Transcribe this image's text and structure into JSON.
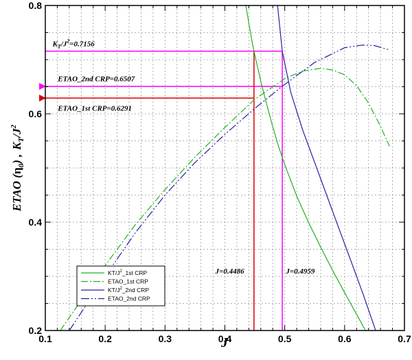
{
  "chart_data": {
    "type": "line",
    "xlabel": "J",
    "ylabel_main": "ETAO (",
    "ylabel_eta": "η",
    "ylabel_eta_sub": "0",
    "ylabel_sep": ") ,",
    "ylabel_k": "K",
    "ylabel_k_sub": "T",
    "ylabel_j": "/J",
    "ylabel_j_sup": "2",
    "xlim": [
      0.1,
      0.7
    ],
    "ylim": [
      0.2,
      0.8
    ],
    "xticks": [
      "0.1",
      "0.2",
      "0.3",
      "0.4",
      "0.5",
      "0.6",
      "0.7"
    ],
    "yticks": [
      {
        "value": 0.2,
        "label": "0.2"
      },
      {
        "value": 0.4,
        "label": "0.4"
      },
      {
        "value": 0.6,
        "label": "0.6"
      },
      {
        "value": 0.8,
        "label": "0.8"
      }
    ],
    "grid": true,
    "legend_position": "bottom-left",
    "series": [
      {
        "name": "KT/J²_1st CRP",
        "legend_base": "KT/J",
        "legend_sup": "2",
        "legend_rest": "_1st CRP",
        "color": "#22b022",
        "dash": "none",
        "x": [
          0.435,
          0.445,
          0.4486,
          0.46,
          0.47,
          0.48,
          0.49,
          0.5,
          0.52,
          0.54,
          0.56,
          0.58,
          0.6,
          0.62,
          0.635
        ],
        "y": [
          0.8,
          0.736,
          0.7156,
          0.66,
          0.617,
          0.576,
          0.539,
          0.506,
          0.448,
          0.399,
          0.354,
          0.311,
          0.27,
          0.23,
          0.2
        ]
      },
      {
        "name": "ETAO_1st CRP",
        "legend_base": "ETAO_1st CRP",
        "legend_sup": "",
        "legend_rest": "",
        "color": "#22b022",
        "dash": "10,3,2,3",
        "x": [
          0.125,
          0.15,
          0.2,
          0.25,
          0.3,
          0.35,
          0.4,
          0.45,
          0.5,
          0.53,
          0.56,
          0.58,
          0.6,
          0.62,
          0.64,
          0.66,
          0.675
        ],
        "y": [
          0.2,
          0.24,
          0.32,
          0.395,
          0.46,
          0.52,
          0.575,
          0.627,
          0.665,
          0.679,
          0.684,
          0.681,
          0.672,
          0.652,
          0.62,
          0.577,
          0.54
        ]
      },
      {
        "name": "KT/J²_2nd CRP",
        "legend_base": "KT/J",
        "legend_sup": "2",
        "legend_rest": "_2nd CRP",
        "color": "#2020a0",
        "dash": "none",
        "x": [
          0.488,
          0.4959,
          0.51,
          0.53,
          0.55,
          0.57,
          0.59,
          0.61,
          0.63,
          0.655
        ],
        "y": [
          0.8,
          0.7156,
          0.64,
          0.57,
          0.51,
          0.45,
          0.39,
          0.33,
          0.27,
          0.19
        ]
      },
      {
        "name": "ETAO_2nd CRP",
        "legend_base": "ETAO_2nd CRP",
        "legend_sup": "",
        "legend_rest": "",
        "color": "#2020a0",
        "dash": "12,3,2,3,2,3",
        "x": [
          0.14,
          0.2,
          0.25,
          0.3,
          0.35,
          0.4,
          0.45,
          0.4959,
          0.55,
          0.6,
          0.63,
          0.65,
          0.675
        ],
        "y": [
          0.2,
          0.3,
          0.38,
          0.45,
          0.51,
          0.562,
          0.61,
          0.651,
          0.695,
          0.722,
          0.727,
          0.726,
          0.718
        ]
      }
    ],
    "reference_lines": [
      {
        "type": "h",
        "y": 0.7156,
        "x_from": 0.1,
        "x_to": 0.4959,
        "color": "#ff00ff",
        "arrow": false
      },
      {
        "type": "h",
        "y": 0.6507,
        "x_from": 0.4959,
        "x_to": 0.1,
        "color": "#ff00ff",
        "arrow": true
      },
      {
        "type": "h",
        "y": 0.6291,
        "x_from": 0.4486,
        "x_to": 0.1,
        "color": "#dd0000",
        "arrow": true
      },
      {
        "type": "v",
        "x": 0.4486,
        "y_from": 0.7156,
        "y_to": 0.2,
        "color": "#dd0000",
        "arrow": false
      },
      {
        "type": "v",
        "x": 0.4959,
        "y_from": 0.7156,
        "y_to": 0.2,
        "color": "#ff00ff",
        "arrow": false
      }
    ],
    "annotations": [
      {
        "id": "ktj2",
        "base": "K",
        "sub": "T",
        "mid": "/J",
        "sup": "2",
        "rest": "=0.7156",
        "x": 0.112,
        "y": 0.725
      },
      {
        "id": "etao2",
        "base": "ETAO_2nd CRP=0.6507",
        "sub": "",
        "mid": "",
        "sup": "",
        "rest": "",
        "x": 0.121,
        "y": 0.66
      },
      {
        "id": "etao1",
        "base": "ETAO_1st CRP=0.6291",
        "sub": "",
        "mid": "",
        "sup": "",
        "rest": "",
        "x": 0.121,
        "y": 0.606
      },
      {
        "id": "j1",
        "base": "J=0.4486",
        "sub": "",
        "mid": "",
        "sup": "",
        "rest": "",
        "x": 0.384,
        "y": 0.305
      },
      {
        "id": "j2",
        "base": "J=0.4959",
        "sub": "",
        "mid": "",
        "sup": "",
        "rest": "",
        "x": 0.502,
        "y": 0.305
      }
    ]
  }
}
